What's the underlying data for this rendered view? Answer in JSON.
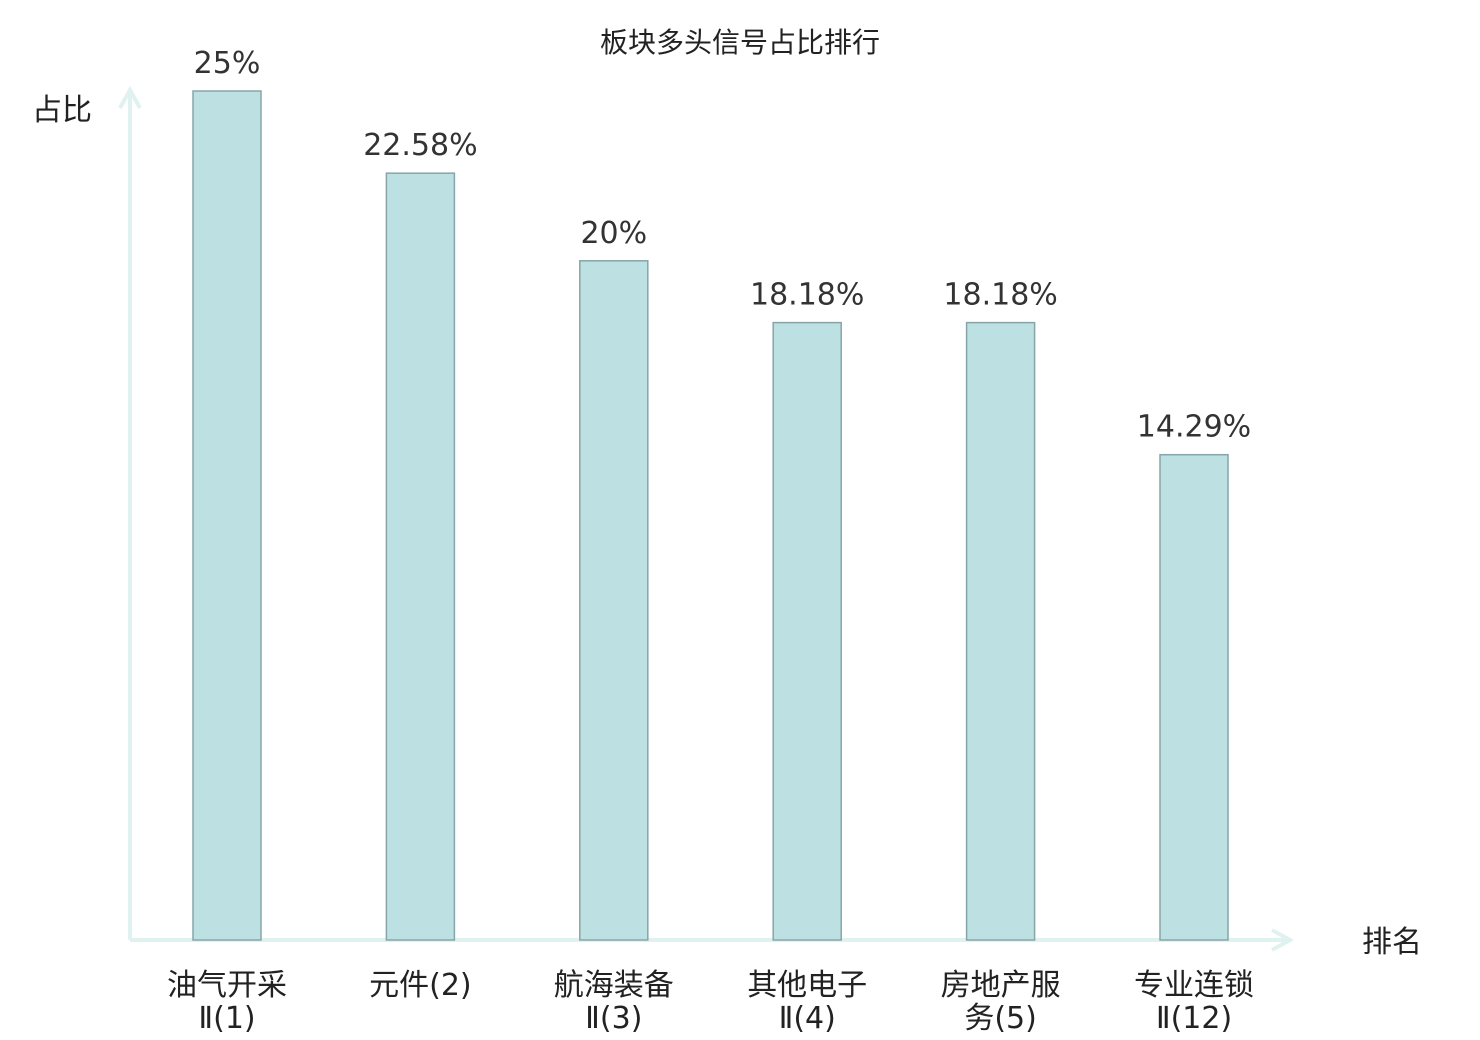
{
  "chart_data": {
    "type": "bar",
    "title": "板块多头信号占比排行",
    "ylabel": "占比",
    "xlabel": "排名",
    "categories": [
      [
        "油气开采",
        "Ⅱ(1)"
      ],
      [
        "元件(2)"
      ],
      [
        "航海装备",
        "Ⅱ(3)"
      ],
      [
        "其他电子",
        "Ⅱ(4)"
      ],
      [
        "房地产服",
        "务(5)"
      ],
      [
        "专业连锁",
        "Ⅱ(12)"
      ]
    ],
    "values": [
      25,
      22.58,
      20,
      18.18,
      18.18,
      14.29
    ],
    "value_labels": [
      "25%",
      "22.58%",
      "20%",
      "18.18%",
      "18.18%",
      "14.29%"
    ],
    "highlight_index": 5,
    "ylim": [
      0,
      25
    ],
    "grid": false,
    "legend": "none"
  },
  "colors": {
    "bar_fill": "#bde0e3",
    "bar_stroke": "#86a5a8",
    "axis": "#dff2ef",
    "highlight": "#e3262a",
    "text": "#222222"
  }
}
